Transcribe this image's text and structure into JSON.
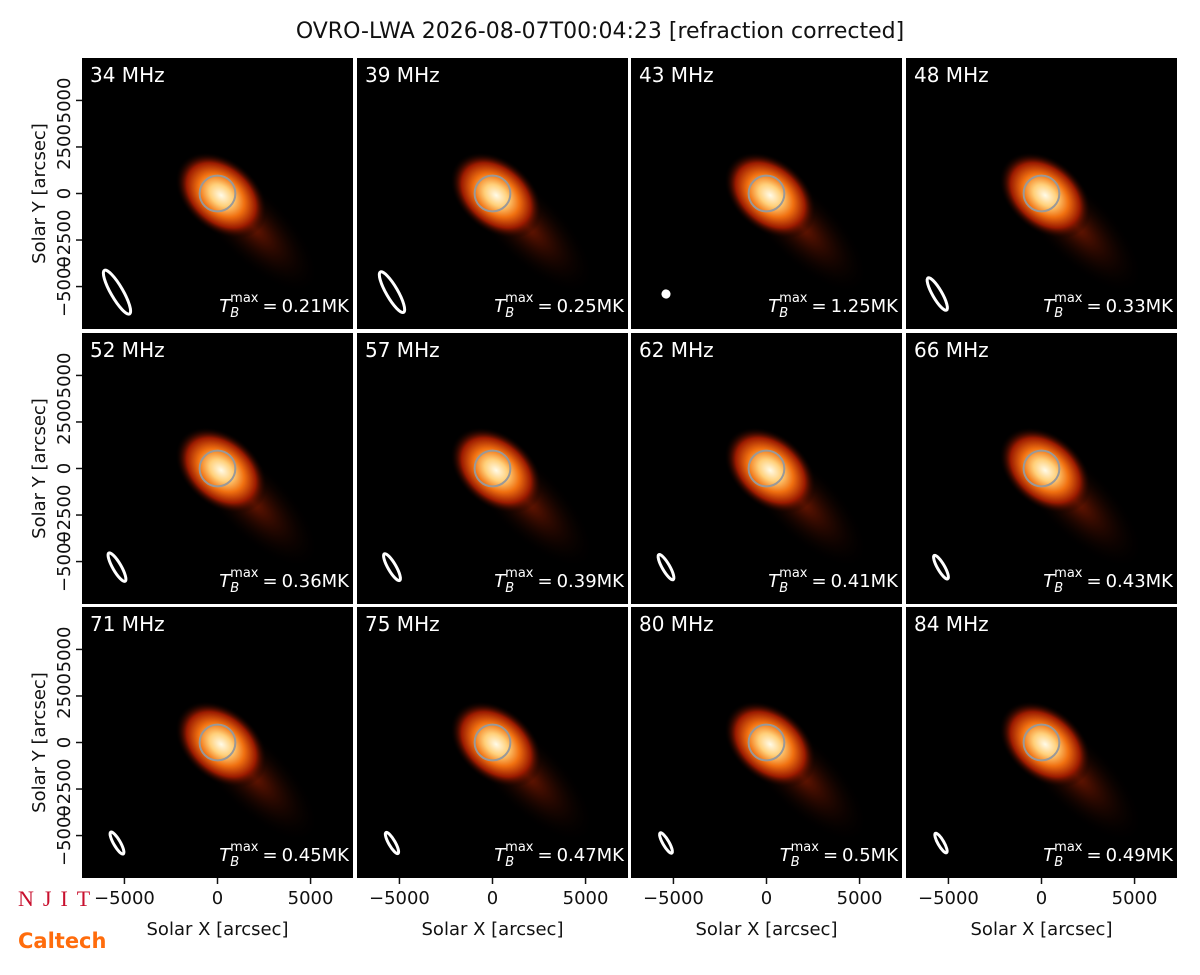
{
  "figure": {
    "title": "OVRO-LWA 2026-08-07T00:04:23 [refraction corrected]",
    "logos": [
      "NJIT",
      "Caltech"
    ]
  },
  "axes": {
    "xlim": [
      -7280,
      7280
    ],
    "ylim": [
      -7280,
      7280
    ],
    "xticks": [
      {
        "value": -5000,
        "label": "−5000"
      },
      0,
      5000
    ],
    "yticks": [
      {
        "value": -5000,
        "label": "−5000"
      },
      {
        "value": -2500,
        "label": "−2500"
      },
      0,
      2500,
      5000
    ],
    "xlabel": "Solar X [arcsec]",
    "ylabel": "Solar Y [arcsec]",
    "disk_radius": 960,
    "tb_symbol": "T",
    "tb_sub": "B",
    "tb_sup": "max",
    "tb_eq": "="
  },
  "chart_data": [
    {
      "type": "image",
      "label": "34 MHz",
      "tb_max": 0.21,
      "tb_label": "0.21MK",
      "beam": {
        "x": -5400,
        "y": -5300,
        "major": 2700,
        "minor": 650,
        "angle": 60
      }
    },
    {
      "type": "image",
      "label": "39 MHz",
      "tb_max": 0.25,
      "tb_label": "0.25MK",
      "beam": {
        "x": -5400,
        "y": -5300,
        "major": 2500,
        "minor": 620,
        "angle": 60
      }
    },
    {
      "type": "image",
      "label": "43 MHz",
      "tb_max": 1.25,
      "tb_label": "1.25MK",
      "beam": {
        "x": -5400,
        "y": -5400,
        "major": 330,
        "minor": 330,
        "angle": 60
      }
    },
    {
      "type": "image",
      "label": "48 MHz",
      "tb_max": 0.33,
      "tb_label": "0.33MK",
      "beam": {
        "x": -5600,
        "y": -5400,
        "major": 2000,
        "minor": 500,
        "angle": 60
      }
    },
    {
      "type": "image",
      "label": "52 MHz",
      "tb_max": 0.36,
      "tb_label": "0.36MK",
      "beam": {
        "x": -5400,
        "y": -5300,
        "major": 1750,
        "minor": 450,
        "angle": 60
      }
    },
    {
      "type": "image",
      "label": "57 MHz",
      "tb_max": 0.39,
      "tb_label": "0.39MK",
      "beam": {
        "x": -5400,
        "y": -5300,
        "major": 1650,
        "minor": 430,
        "angle": 60
      }
    },
    {
      "type": "image",
      "label": "62 MHz",
      "tb_max": 0.41,
      "tb_label": "0.41MK",
      "beam": {
        "x": -5400,
        "y": -5300,
        "major": 1550,
        "minor": 400,
        "angle": 60
      }
    },
    {
      "type": "image",
      "label": "66 MHz",
      "tb_max": 0.43,
      "tb_label": "0.43MK",
      "beam": {
        "x": -5400,
        "y": -5300,
        "major": 1450,
        "minor": 380,
        "angle": 60
      }
    },
    {
      "type": "image",
      "label": "71 MHz",
      "tb_max": 0.45,
      "tb_label": "0.45MK",
      "beam": {
        "x": -5400,
        "y": -5400,
        "major": 1350,
        "minor": 360,
        "angle": 60
      }
    },
    {
      "type": "image",
      "label": "75 MHz",
      "tb_max": 0.47,
      "tb_label": "0.47MK",
      "beam": {
        "x": -5400,
        "y": -5400,
        "major": 1300,
        "minor": 340,
        "angle": 60
      }
    },
    {
      "type": "image",
      "label": "80 MHz",
      "tb_max": 0.5,
      "tb_label": "0.5MK",
      "beam": {
        "x": -5400,
        "y": -5400,
        "major": 1250,
        "minor": 330,
        "angle": 60
      }
    },
    {
      "type": "image",
      "label": "84 MHz",
      "tb_max": 0.49,
      "tb_label": "0.49MK",
      "beam": {
        "x": -5400,
        "y": -5400,
        "major": 1200,
        "minor": 320,
        "angle": 60
      }
    }
  ]
}
